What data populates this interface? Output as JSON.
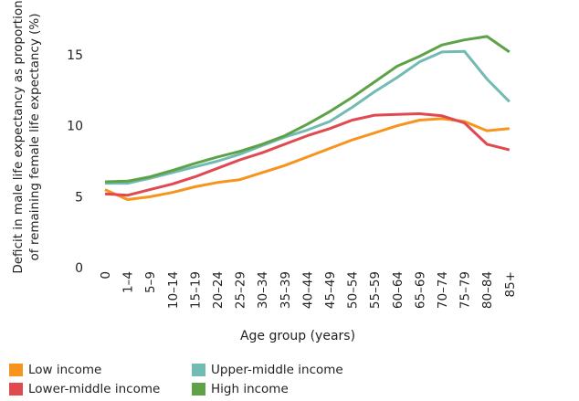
{
  "chart_data": {
    "type": "line",
    "xlabel": "Age group (years)",
    "ylabel": "Deficit in male life expectancy as proportion of remaining female life expectancy (%)",
    "ylabel_lines": [
      "Deficit in male life expectancy as proportion",
      "of remaining female life expectancy (%)"
    ],
    "categories": [
      "0",
      "1–4",
      "5–9",
      "10–14",
      "15–19",
      "20–24",
      "25–29",
      "30–34",
      "35–39",
      "40–44",
      "45–49",
      "50–54",
      "55–59",
      "60–64",
      "65–69",
      "70–74",
      "75–79",
      "80–84",
      "85+"
    ],
    "yticks": [
      0,
      5,
      10,
      15
    ],
    "ylim": [
      0,
      17
    ],
    "grid": false,
    "series": [
      {
        "name": "Low income",
        "color": "#f7941d",
        "values": [
          5.5,
          4.8,
          5.0,
          5.3,
          5.7,
          6.0,
          6.2,
          6.7,
          7.2,
          7.8,
          8.4,
          9.0,
          9.5,
          10.0,
          10.4,
          10.5,
          10.3,
          9.65,
          9.8
        ]
      },
      {
        "name": "Lower-middle income",
        "color": "#e0494f",
        "values": [
          5.2,
          5.1,
          5.5,
          5.9,
          6.4,
          7.0,
          7.6,
          8.1,
          8.7,
          9.3,
          9.8,
          10.4,
          10.75,
          10.8,
          10.85,
          10.7,
          10.2,
          8.7,
          8.3
        ]
      },
      {
        "name": "Upper-middle income",
        "color": "#72bab4",
        "values": [
          5.95,
          5.95,
          6.3,
          6.7,
          7.1,
          7.5,
          8.0,
          8.6,
          9.2,
          9.7,
          10.3,
          11.3,
          12.4,
          13.4,
          14.5,
          15.2,
          15.25,
          13.3,
          11.7
        ]
      },
      {
        "name": "High income",
        "color": "#5da246",
        "values": [
          6.05,
          6.1,
          6.4,
          6.85,
          7.35,
          7.8,
          8.2,
          8.7,
          9.3,
          10.1,
          11.0,
          12.0,
          13.1,
          14.2,
          14.9,
          15.7,
          16.05,
          16.3,
          15.2
        ]
      }
    ],
    "legend_position": "bottom"
  }
}
